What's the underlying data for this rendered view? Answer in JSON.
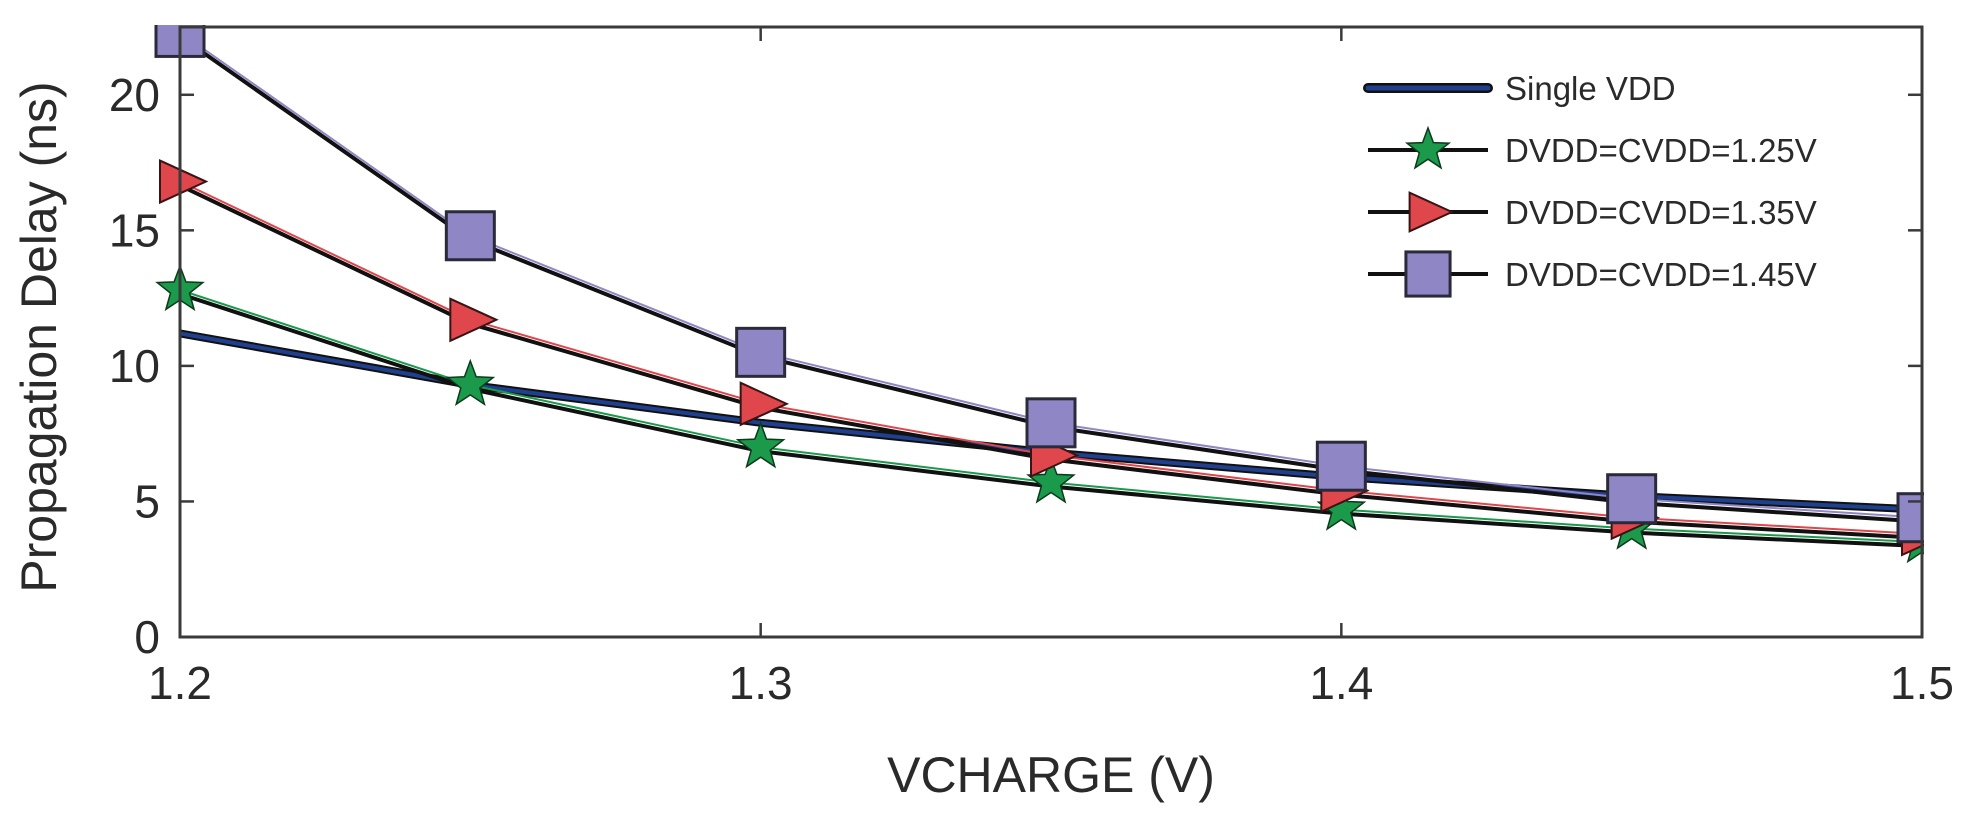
{
  "chart_data": {
    "type": "line",
    "title": "",
    "xlabel": "VCHARGE (V)",
    "ylabel": "Propagation Delay (ns)",
    "xlim": [
      1.2,
      1.5
    ],
    "ylim": [
      0,
      22.5
    ],
    "x": [
      1.2,
      1.25,
      1.3,
      1.35,
      1.4,
      1.45,
      1.5
    ],
    "x_ticks": [
      1.2,
      1.3,
      1.4,
      1.5
    ],
    "x_tick_labels": [
      "1.2",
      "1.3",
      "1.4",
      "1.5"
    ],
    "y_ticks": [
      0,
      5,
      10,
      15,
      20
    ],
    "y_tick_labels": [
      "0",
      "5",
      "10",
      "15",
      "20"
    ],
    "grid": false,
    "legend_position": "top-right",
    "series": [
      {
        "name": "Single VDD",
        "marker": "none",
        "color": "#1f3f8f",
        "values": [
          11.2,
          9.3,
          7.9,
          6.8,
          5.9,
          5.2,
          4.7
        ]
      },
      {
        "name": "DVDD=CVDD=1.25V",
        "marker": "star",
        "color": "#1a9a4a",
        "values": [
          12.8,
          9.3,
          7.0,
          5.7,
          4.7,
          4.0,
          3.5
        ]
      },
      {
        "name": "DVDD=CVDD=1.35V",
        "marker": "triangle-right",
        "color": "#e0474c",
        "values": [
          16.8,
          11.7,
          8.6,
          6.7,
          5.4,
          4.4,
          3.8
        ]
      },
      {
        "name": "DVDD=CVDD=1.45V",
        "marker": "square",
        "color": "#8f86c6",
        "values": [
          22.3,
          14.8,
          10.5,
          7.9,
          6.3,
          5.1,
          4.4
        ]
      }
    ]
  }
}
